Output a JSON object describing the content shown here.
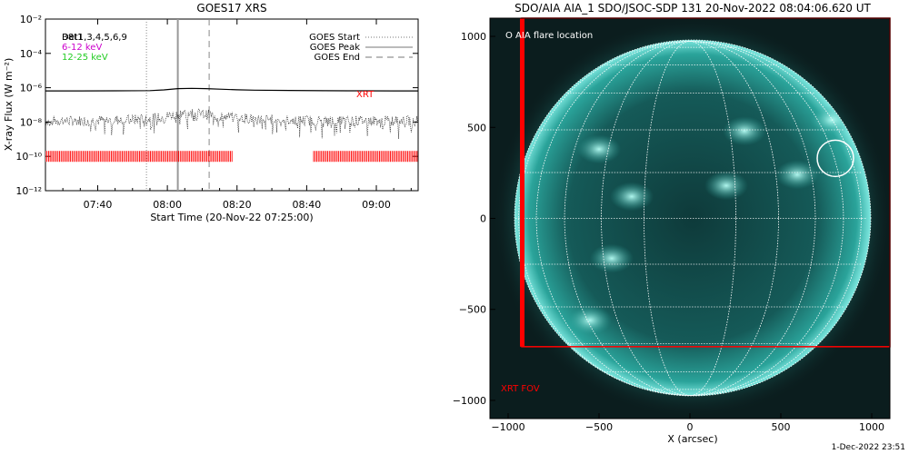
{
  "left_chart": {
    "title": "GOES17 XRS",
    "ylabel": "X-ray Flux (W m⁻²)",
    "xlabel": "Start Time (20-Nov-22 07:25:00)",
    "legend_left": [
      {
        "label": "Det1,3,4,5,6,9",
        "color": "#000000",
        "overprint": "B8t1"
      },
      {
        "label": "6-12 keV",
        "color": "#cc00cc"
      },
      {
        "label": "12-25 keV",
        "color": "#22cc22"
      }
    ],
    "legend_right": [
      {
        "label": "GOES Start",
        "style": "dotted"
      },
      {
        "label": "GOES Peak",
        "style": "solid"
      },
      {
        "label": "GOES End",
        "style": "dashed"
      }
    ],
    "xrt_label": "XRT",
    "y_tick_labels": [
      "10⁻²",
      "10⁻⁴",
      "10⁻⁶",
      "10⁻⁸",
      "10⁻¹⁰",
      "10⁻¹²"
    ],
    "x_tick_labels": [
      "07:40",
      "08:00",
      "08:20",
      "08:40",
      "09:00"
    ]
  },
  "chart_data": [
    {
      "type": "line",
      "x_units": "minutes after 07:25:00",
      "y_scale": "log",
      "ylim": [
        1e-12,
        0.01
      ],
      "xlim": [
        0,
        107
      ],
      "x_tick_values": [
        15,
        35,
        55,
        75,
        95
      ],
      "y_tick_values": [
        0.01,
        0.0001,
        1e-06,
        1e-08,
        1e-10,
        1e-12
      ],
      "series": [
        {
          "name": "",
          "note_style": "solid-long",
          "x": [
            0,
            10,
            20,
            30,
            34,
            38,
            42,
            46,
            50,
            55,
            60,
            70,
            80,
            90,
            100,
            107
          ],
          "values": [
            6.5e-07,
            6.5e-07,
            6.6e-07,
            6.8e-07,
            7.5e-07,
            8.8e-07,
            9.2e-07,
            8.8e-07,
            8.2e-07,
            7.6e-07,
            7.2e-07,
            6.9e-07,
            6.7e-07,
            6.6e-07,
            6.5e-07,
            6.5e-07
          ]
        },
        {
          "name": "",
          "note_style": "dotted-short",
          "x": [
            0,
            10,
            20,
            30,
            34,
            38,
            42,
            46,
            50,
            55,
            60,
            70,
            80,
            90,
            100,
            107
          ],
          "values": [
            1.2e-08,
            1.2e-08,
            1.3e-08,
            1.5e-08,
            2e-08,
            3e-08,
            3.4e-08,
            2.8e-08,
            2.2e-08,
            1.8e-08,
            1.5e-08,
            1.3e-08,
            1.2e-08,
            1.2e-08,
            1.2e-08,
            1.2e-08
          ]
        }
      ],
      "vertical_markers": [
        {
          "name": "GOES Start",
          "x": 29,
          "style": "dotted"
        },
        {
          "name": "GOES Peak",
          "x": 38,
          "style": "solid"
        },
        {
          "name": "GOES End",
          "x": 47,
          "style": "dashed"
        }
      ],
      "xrt_coverage_minutes": [
        [
          0,
          54
        ],
        [
          77,
          107
        ]
      ],
      "xrt_marker_level": 1e-10
    },
    {
      "type": "scatter",
      "title": "SDO/AIA AIA_1 SDO/JSOC-SDP 131 20-Nov-2022 08:04:06.620 UT",
      "xlabel": "X (arcsec)",
      "ylabel": "",
      "xlim": [
        -1100,
        1100
      ],
      "ylim": [
        -1100,
        1100
      ],
      "x_tick_values": [
        -1000,
        -500,
        0,
        500,
        1000
      ],
      "y_tick_values": [
        1000,
        500,
        0,
        -500,
        -1000
      ],
      "x_tick_labels": [
        "−1000",
        "−500",
        "0",
        "500",
        "1000"
      ],
      "y_tick_labels": [
        "1000",
        "500",
        "0",
        "−500",
        "−1000"
      ],
      "solar_radius_arcsec": 975,
      "flare_location": {
        "x": 800,
        "y": 330
      },
      "xrt_fov_corner": {
        "x": -925,
        "y": -705
      },
      "active_regions": [
        {
          "x": -500,
          "y": 380
        },
        {
          "x": 780,
          "y": 540
        },
        {
          "x": 300,
          "y": 480
        },
        {
          "x": -320,
          "y": 120
        },
        {
          "x": 200,
          "y": 180
        },
        {
          "x": -550,
          "y": -560
        },
        {
          "x": -430,
          "y": -220
        },
        {
          "x": 590,
          "y": 240
        }
      ]
    }
  ],
  "right_image": {
    "flare_legend": "O AIA flare location",
    "xrt_fov_label": "XRT FOV",
    "colors": {
      "disk": "#2aa39a",
      "fov": "#ff0000",
      "grid": "#ffffff"
    }
  },
  "footer": {
    "timestamp": "1-Dec-2022 23:51"
  }
}
